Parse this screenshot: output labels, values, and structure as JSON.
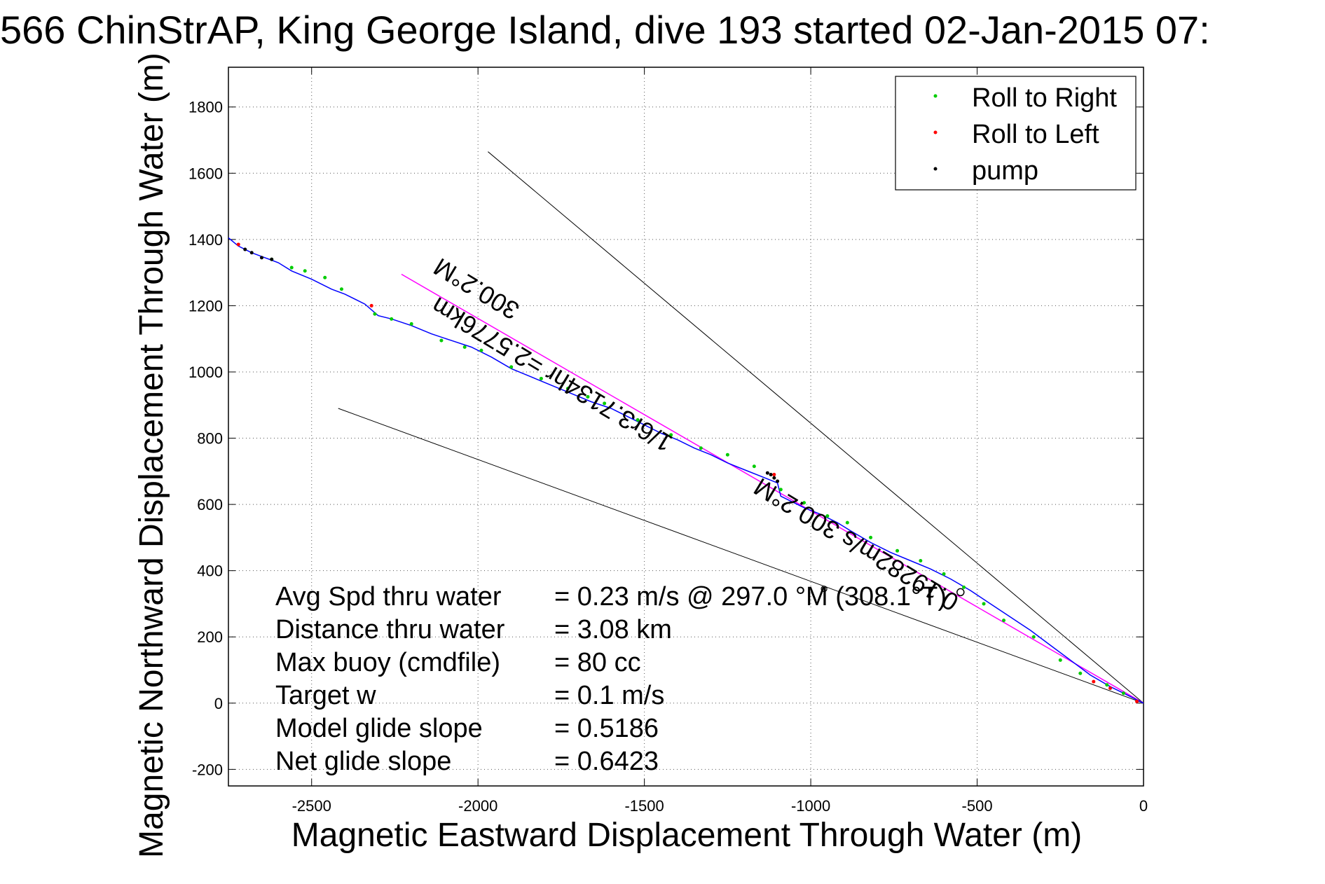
{
  "chart_data": {
    "type": "scatter",
    "title": "566 ChinStrAP, King George Island, dive 193 started 02-Jan-2015 07:",
    "xlabel": "Magnetic Eastward Displacement Through Water (m)",
    "ylabel": "Magnetic Northward Displacement Through Water (m)",
    "xlim": [
      -2750,
      0
    ],
    "ylim": [
      -250,
      1920
    ],
    "xticks": [
      -2500,
      -2000,
      -1500,
      -1000,
      -500,
      0
    ],
    "yticks": [
      -200,
      0,
      200,
      400,
      600,
      800,
      1000,
      1200,
      1400,
      1600,
      1800
    ],
    "grid": true,
    "legend_position": "top-right",
    "legend": [
      {
        "label": "Roll to Right",
        "color": "#00cc00"
      },
      {
        "label": "Roll to Left",
        "color": "#ff0000"
      },
      {
        "label": "pump",
        "color": "#000000"
      }
    ],
    "track": {
      "name": "track",
      "color": "#0000ff",
      "x": [
        -2750,
        -2720,
        -2680,
        -2640,
        -2600,
        -2560,
        -2500,
        -2440,
        -2400,
        -2340,
        -2300,
        -2260,
        -2200,
        -2140,
        -2080,
        -2020,
        -1960,
        -1900,
        -1840,
        -1780,
        -1720,
        -1660,
        -1600,
        -1550,
        -1500,
        -1450,
        -1400,
        -1350,
        -1300,
        -1250,
        -1200,
        -1150,
        -1100,
        -1090,
        -1060,
        -1020,
        -970,
        -920,
        -880,
        -820,
        -760,
        -700,
        -640,
        -580,
        -520,
        -460,
        -400,
        -340,
        -280,
        -220,
        -160,
        -100,
        -40,
        0
      ],
      "y": [
        1405,
        1380,
        1360,
        1345,
        1330,
        1305,
        1280,
        1250,
        1235,
        1205,
        1170,
        1160,
        1140,
        1115,
        1095,
        1075,
        1045,
        1010,
        985,
        960,
        935,
        910,
        890,
        865,
        840,
        815,
        795,
        770,
        750,
        725,
        705,
        685,
        665,
        625,
        610,
        590,
        570,
        545,
        520,
        485,
        455,
        430,
        405,
        375,
        340,
        300,
        260,
        220,
        175,
        130,
        85,
        50,
        20,
        0
      ]
    },
    "roll_right_points": {
      "x": [
        -2620,
        -2560,
        -2520,
        -2460,
        -2410,
        -2310,
        -2260,
        -2200,
        -2110,
        -2040,
        -1990,
        -1900,
        -1810,
        -1730,
        -1670,
        -1620,
        -1520,
        -1420,
        -1330,
        -1250,
        -1170,
        -1090,
        -1020,
        -950,
        -890,
        -820,
        -740,
        -670,
        -600,
        -540,
        -480,
        -420,
        -330,
        -250,
        -190,
        -110,
        -60
      ],
      "y": [
        1340,
        1315,
        1305,
        1285,
        1250,
        1175,
        1160,
        1145,
        1095,
        1075,
        1065,
        1015,
        980,
        950,
        925,
        905,
        855,
        810,
        770,
        750,
        715,
        645,
        605,
        565,
        545,
        500,
        460,
        430,
        390,
        350,
        300,
        250,
        200,
        130,
        90,
        55,
        30
      ]
    },
    "roll_left_points": {
      "x": [
        -2720,
        -2320,
        -1110,
        -150,
        -100,
        -20
      ],
      "y": [
        1385,
        1200,
        690,
        65,
        45,
        5
      ]
    },
    "pump_points": {
      "x": [
        -2700,
        -2680,
        -2650,
        -2620,
        -1130,
        -1120,
        -1110,
        -1100
      ],
      "y": [
        1370,
        1360,
        1345,
        1340,
        695,
        690,
        680,
        670
      ]
    },
    "heading_line": {
      "label": "300.2°M",
      "color": "#ff00ff",
      "x": [
        -2230,
        0
      ],
      "y": [
        1295,
        0
      ]
    },
    "bound_lines": [
      {
        "x": [
          -1970,
          0
        ],
        "y": [
          1665,
          0
        ]
      },
      {
        "x": [
          -2420,
          0
        ],
        "y": [
          890,
          0
        ]
      }
    ],
    "annotations": [
      {
        "text": "300.2°M",
        "x": -1870,
        "y": 1200,
        "angle": 31
      },
      {
        "text": "1/6r3.7134hr =2.5776km",
        "x": -1410,
        "y": 800,
        "angle": 31
      },
      {
        "text": "0.19282m/s 300.2°M",
        "x": -550,
        "y": 320,
        "angle": 31
      }
    ],
    "stats": [
      {
        "label": "Avg Spd thru water",
        "value": "=  0.23 m/s @ 297.0  °M (308.1°T)"
      },
      {
        "label": "Distance thru water",
        "value": "=  3.08 km"
      },
      {
        "label": "Max buoy (cmdfile)",
        "value": "= 80 cc"
      },
      {
        "label": "Target w",
        "value": "= 0.1 m/s"
      },
      {
        "label": "Model glide slope",
        "value": "= 0.5186"
      },
      {
        "label": "Net glide slope",
        "value": "= 0.6423"
      }
    ]
  }
}
